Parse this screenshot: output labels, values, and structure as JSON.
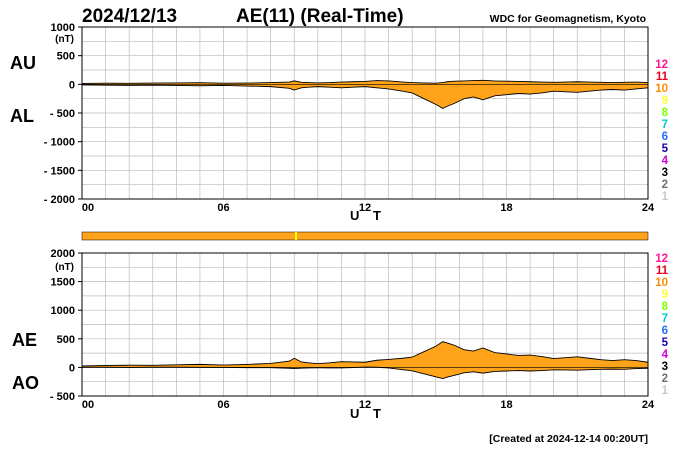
{
  "header": {
    "date": "2024/12/13",
    "title": "AE(11) (Real-Time)",
    "source": "WDC for Geomagnetism, Kyoto"
  },
  "footer": {
    "created": "[Created at 2024-12-14 00:20UT]"
  },
  "station_counts": {
    "labels": [
      "12",
      "11",
      "10",
      "9",
      "8",
      "7",
      "6",
      "5",
      "4",
      "3",
      "2",
      "1"
    ],
    "colors": [
      "#ff1493",
      "#e8001c",
      "#ff8c00",
      "#ffff33",
      "#7fff00",
      "#00c8c8",
      "#1f6fff",
      "#1800b0",
      "#d400d4",
      "#000000",
      "#707070",
      "#c8c8c8"
    ]
  },
  "colors": {
    "fill": "#ffa31a",
    "line": "#000000",
    "grid": "#bbbbbb",
    "bar": "#ffa31a",
    "bar_marker": "#ffff00"
  },
  "chart_data": [
    {
      "type": "area",
      "name": "AU-AL",
      "xlabel": "U T",
      "unit": "(nT)",
      "series_labels": [
        "AU",
        "AL"
      ],
      "xlim": [
        0,
        24
      ],
      "ylim": [
        -2000,
        1000
      ],
      "xticks": [
        "00",
        "06",
        "12",
        "18",
        "24"
      ],
      "yticks": [
        "1000",
        "500",
        "0",
        "- 500",
        "- 1000",
        "- 1500",
        "- 2000"
      ],
      "x": [
        0,
        1,
        2,
        3,
        4,
        5,
        6,
        7,
        8,
        8.8,
        9,
        9.3,
        9.6,
        10,
        10.5,
        11,
        11.5,
        12,
        12.5,
        13,
        13.3,
        13.6,
        14,
        14.5,
        15,
        15.3,
        15.5,
        15.8,
        16.2,
        16.6,
        17,
        17.5,
        18,
        18.5,
        19,
        19.5,
        20,
        20.5,
        21,
        21.5,
        22,
        22.5,
        23,
        23.5,
        24
      ],
      "series": [
        {
          "name": "AU",
          "values": [
            15,
            20,
            18,
            22,
            25,
            28,
            20,
            22,
            30,
            40,
            60,
            35,
            30,
            25,
            30,
            40,
            45,
            50,
            65,
            60,
            50,
            40,
            30,
            25,
            20,
            30,
            45,
            55,
            60,
            65,
            70,
            60,
            55,
            50,
            45,
            40,
            35,
            40,
            45,
            40,
            35,
            30,
            35,
            40,
            30
          ]
        },
        {
          "name": "AL",
          "values": [
            -10,
            -15,
            -20,
            -15,
            -20,
            -25,
            -20,
            -30,
            -40,
            -70,
            -100,
            -60,
            -50,
            -40,
            -50,
            -60,
            -50,
            -40,
            -60,
            -80,
            -100,
            -120,
            -150,
            -250,
            -350,
            -420,
            -380,
            -330,
            -250,
            -220,
            -270,
            -200,
            -180,
            -160,
            -170,
            -150,
            -120,
            -130,
            -140,
            -120,
            -100,
            -90,
            -100,
            -80,
            -60
          ]
        }
      ]
    },
    {
      "type": "area",
      "name": "AE-AO",
      "xlabel": "U T",
      "unit": "(nT)",
      "series_labels": [
        "AE",
        "AO"
      ],
      "xlim": [
        0,
        24
      ],
      "ylim": [
        -500,
        2000
      ],
      "xticks": [
        "00",
        "06",
        "12",
        "18",
        "24"
      ],
      "yticks": [
        "2000",
        "1500",
        "1000",
        "500",
        "0",
        "- 500"
      ],
      "x": [
        0,
        1,
        2,
        3,
        4,
        5,
        6,
        7,
        8,
        8.8,
        9,
        9.3,
        9.6,
        10,
        10.5,
        11,
        11.5,
        12,
        12.5,
        13,
        13.3,
        13.6,
        14,
        14.5,
        15,
        15.3,
        15.5,
        15.8,
        16.2,
        16.6,
        17,
        17.5,
        18,
        18.5,
        19,
        19.5,
        20,
        20.5,
        21,
        21.5,
        22,
        22.5,
        23,
        23.5,
        24
      ],
      "series": [
        {
          "name": "AE",
          "values": [
            25,
            35,
            38,
            37,
            45,
            53,
            40,
            52,
            70,
            110,
            160,
            95,
            80,
            65,
            80,
            100,
            95,
            90,
            125,
            140,
            150,
            160,
            180,
            275,
            370,
            450,
            425,
            385,
            310,
            285,
            340,
            260,
            235,
            210,
            215,
            190,
            155,
            170,
            185,
            160,
            135,
            120,
            135,
            120,
            90
          ]
        },
        {
          "name": "AO",
          "values": [
            3,
            3,
            -1,
            4,
            3,
            2,
            0,
            -4,
            -5,
            -15,
            -20,
            -13,
            -10,
            -8,
            -10,
            -10,
            -3,
            5,
            3,
            -10,
            -25,
            -40,
            -60,
            -113,
            -165,
            -195,
            -168,
            -138,
            -95,
            -78,
            -100,
            -70,
            -63,
            -55,
            -63,
            -55,
            -43,
            -45,
            -48,
            -40,
            -33,
            -30,
            -33,
            -20,
            -15
          ]
        }
      ]
    }
  ]
}
